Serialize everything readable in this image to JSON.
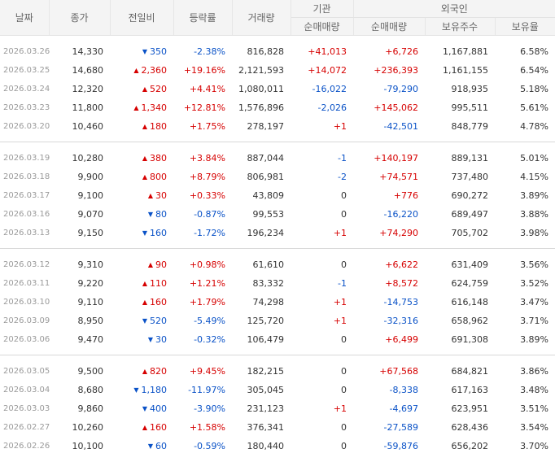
{
  "headers": {
    "date": "날짜",
    "close": "종가",
    "change": "전일비",
    "rate": "등락률",
    "volume": "거래량",
    "institution": "기관",
    "foreign": "외국인",
    "inst_net": "순매매량",
    "foreign_net": "순매매량",
    "foreign_holdings": "보유주수",
    "foreign_ratio": "보유율"
  },
  "colors": {
    "up": "#d60000",
    "down": "#0a52c7",
    "header_bg": "#f4f4f4"
  },
  "groups": [
    {
      "rows": [
        {
          "date": "2026.03.26",
          "close": "14,330",
          "dir": "down",
          "change": "350",
          "rate": "-2.38%",
          "volume": "816,828",
          "inst": "+41,013",
          "fnet": "+6,726",
          "fhold": "1,167,881",
          "fratio": "6.58%"
        },
        {
          "date": "2026.03.25",
          "close": "14,680",
          "dir": "up",
          "change": "2,360",
          "rate": "+19.16%",
          "volume": "2,121,593",
          "inst": "+14,072",
          "fnet": "+236,393",
          "fhold": "1,161,155",
          "fratio": "6.54%"
        },
        {
          "date": "2026.03.24",
          "close": "12,320",
          "dir": "up",
          "change": "520",
          "rate": "+4.41%",
          "volume": "1,080,011",
          "inst": "-16,022",
          "fnet": "-79,290",
          "fhold": "918,935",
          "fratio": "5.18%"
        },
        {
          "date": "2026.03.23",
          "close": "11,800",
          "dir": "up",
          "change": "1,340",
          "rate": "+12.81%",
          "volume": "1,576,896",
          "inst": "-2,026",
          "fnet": "+145,062",
          "fhold": "995,511",
          "fratio": "5.61%"
        },
        {
          "date": "2026.03.20",
          "close": "10,460",
          "dir": "up",
          "change": "180",
          "rate": "+1.75%",
          "volume": "278,197",
          "inst": "+1",
          "fnet": "-42,501",
          "fhold": "848,779",
          "fratio": "4.78%"
        }
      ]
    },
    {
      "rows": [
        {
          "date": "2026.03.19",
          "close": "10,280",
          "dir": "up",
          "change": "380",
          "rate": "+3.84%",
          "volume": "887,044",
          "inst": "-1",
          "fnet": "+140,197",
          "fhold": "889,131",
          "fratio": "5.01%"
        },
        {
          "date": "2026.03.18",
          "close": "9,900",
          "dir": "up",
          "change": "800",
          "rate": "+8.79%",
          "volume": "806,981",
          "inst": "-2",
          "fnet": "+74,571",
          "fhold": "737,480",
          "fratio": "4.15%"
        },
        {
          "date": "2026.03.17",
          "close": "9,100",
          "dir": "up",
          "change": "30",
          "rate": "+0.33%",
          "volume": "43,809",
          "inst": "0",
          "fnet": "+776",
          "fhold": "690,272",
          "fratio": "3.89%"
        },
        {
          "date": "2026.03.16",
          "close": "9,070",
          "dir": "down",
          "change": "80",
          "rate": "-0.87%",
          "volume": "99,553",
          "inst": "0",
          "fnet": "-16,220",
          "fhold": "689,497",
          "fratio": "3.88%"
        },
        {
          "date": "2026.03.13",
          "close": "9,150",
          "dir": "down",
          "change": "160",
          "rate": "-1.72%",
          "volume": "196,234",
          "inst": "+1",
          "fnet": "+74,290",
          "fhold": "705,702",
          "fratio": "3.98%"
        }
      ]
    },
    {
      "rows": [
        {
          "date": "2026.03.12",
          "close": "9,310",
          "dir": "up",
          "change": "90",
          "rate": "+0.98%",
          "volume": "61,610",
          "inst": "0",
          "fnet": "+6,622",
          "fhold": "631,409",
          "fratio": "3.56%"
        },
        {
          "date": "2026.03.11",
          "close": "9,220",
          "dir": "up",
          "change": "110",
          "rate": "+1.21%",
          "volume": "83,332",
          "inst": "-1",
          "fnet": "+8,572",
          "fhold": "624,759",
          "fratio": "3.52%"
        },
        {
          "date": "2026.03.10",
          "close": "9,110",
          "dir": "up",
          "change": "160",
          "rate": "+1.79%",
          "volume": "74,298",
          "inst": "+1",
          "fnet": "-14,753",
          "fhold": "616,148",
          "fratio": "3.47%"
        },
        {
          "date": "2026.03.09",
          "close": "8,950",
          "dir": "down",
          "change": "520",
          "rate": "-5.49%",
          "volume": "125,720",
          "inst": "+1",
          "fnet": "-32,316",
          "fhold": "658,962",
          "fratio": "3.71%"
        },
        {
          "date": "2026.03.06",
          "close": "9,470",
          "dir": "down",
          "change": "30",
          "rate": "-0.32%",
          "volume": "106,479",
          "inst": "0",
          "fnet": "+6,499",
          "fhold": "691,308",
          "fratio": "3.89%"
        }
      ]
    },
    {
      "rows": [
        {
          "date": "2026.03.05",
          "close": "9,500",
          "dir": "up",
          "change": "820",
          "rate": "+9.45%",
          "volume": "182,215",
          "inst": "0",
          "fnet": "+67,568",
          "fhold": "684,821",
          "fratio": "3.86%"
        },
        {
          "date": "2026.03.04",
          "close": "8,680",
          "dir": "down",
          "change": "1,180",
          "rate": "-11.97%",
          "volume": "305,045",
          "inst": "0",
          "fnet": "-8,338",
          "fhold": "617,163",
          "fratio": "3.48%"
        },
        {
          "date": "2026.03.03",
          "close": "9,860",
          "dir": "down",
          "change": "400",
          "rate": "-3.90%",
          "volume": "231,123",
          "inst": "+1",
          "fnet": "-4,697",
          "fhold": "623,951",
          "fratio": "3.51%"
        },
        {
          "date": "2026.02.27",
          "close": "10,260",
          "dir": "up",
          "change": "160",
          "rate": "+1.58%",
          "volume": "376,341",
          "inst": "0",
          "fnet": "-27,589",
          "fhold": "628,436",
          "fratio": "3.54%"
        },
        {
          "date": "2026.02.26",
          "close": "10,100",
          "dir": "down",
          "change": "60",
          "rate": "-0.59%",
          "volume": "180,440",
          "inst": "0",
          "fnet": "-59,876",
          "fhold": "656,202",
          "fratio": "3.70%"
        }
      ]
    }
  ]
}
